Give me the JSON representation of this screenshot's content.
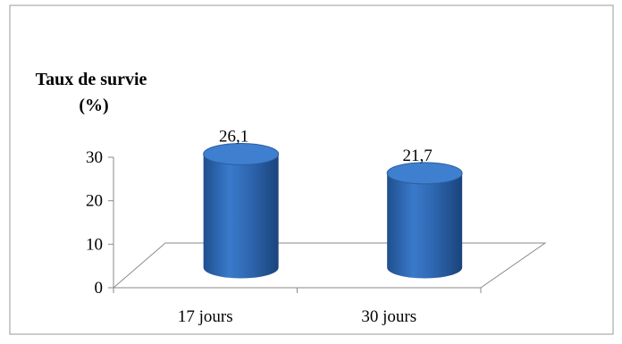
{
  "chart_data": {
    "type": "bar",
    "title": "",
    "ylabel": "Taux de survie (%)",
    "ylabel_lines": [
      "Taux de survie",
      "(%)"
    ],
    "xlabel": "",
    "categories": [
      "17 jours",
      "30 jours"
    ],
    "values": [
      26.1,
      21.7
    ],
    "value_labels": [
      "26,1",
      "21,7"
    ],
    "yticks": [
      0,
      10,
      20,
      30
    ],
    "ylim": [
      0,
      30
    ],
    "style": "3d-cylinder",
    "grid": false,
    "legend": "none",
    "bar_color": "#2e6bb5",
    "bar_top_color": "#3f7fcf",
    "floor_line_color": "#8a8a8a"
  }
}
